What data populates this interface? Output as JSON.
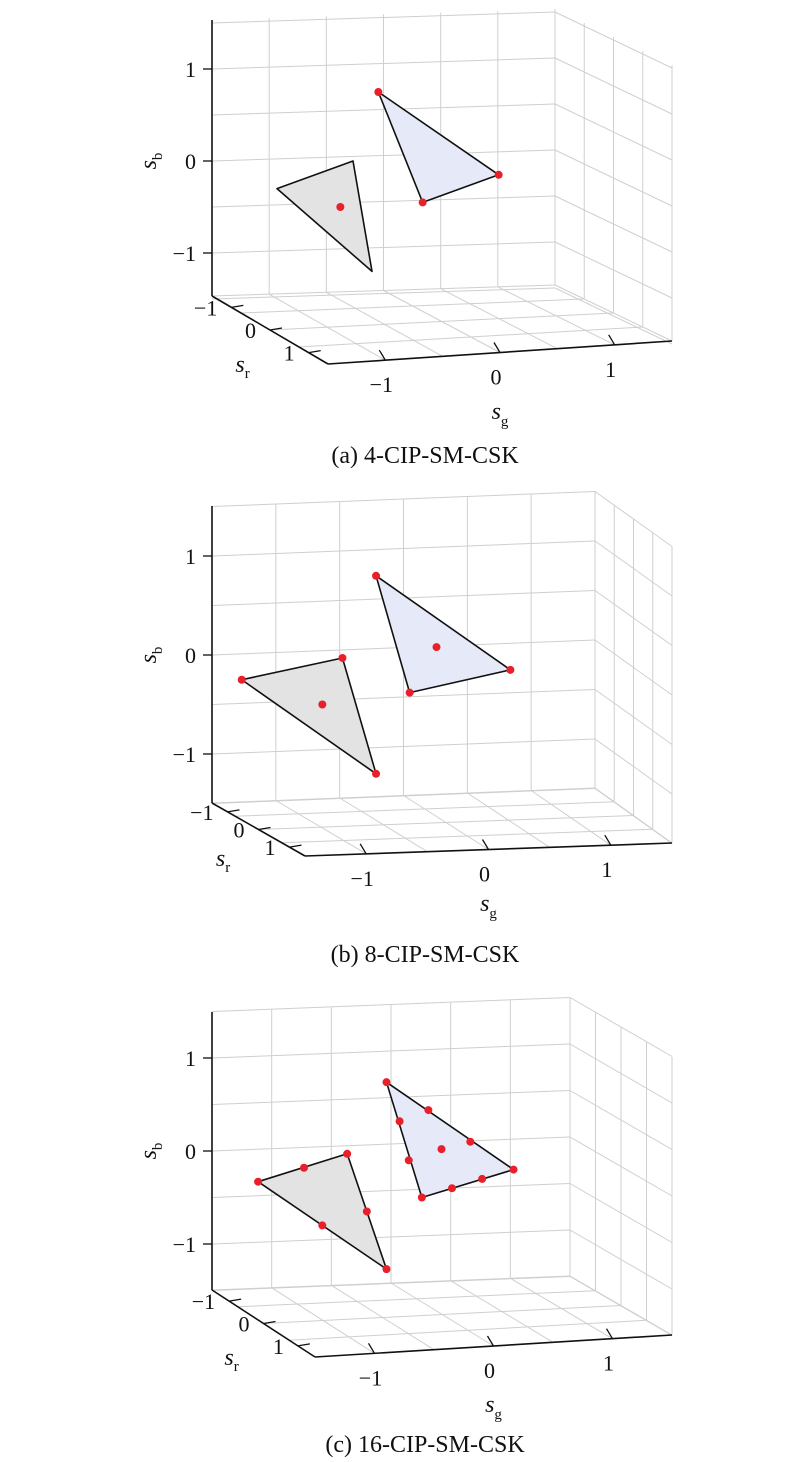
{
  "colors": {
    "triangle_left_fill": "#e3e3e3",
    "triangle_right_fill": "#e6e9f7",
    "point": "#e8202a",
    "grid": "#cfcfcf",
    "axis": "#111111"
  },
  "chart_data": [
    {
      "type": "scatter",
      "view": "3d",
      "caption": "(a) 4-CIP-SM-CSK",
      "axes": {
        "x": {
          "label": "s",
          "sub": "g",
          "ticks": [
            "−1",
            "0",
            "1"
          ],
          "range": [
            -1.5,
            1.5
          ]
        },
        "y": {
          "label": "s",
          "sub": "r",
          "ticks": [
            "−1",
            "0",
            "1"
          ],
          "range": [
            -1.5,
            1.5
          ]
        },
        "z": {
          "label": "s",
          "sub": "b",
          "ticks": [
            "−1",
            "0",
            "1"
          ],
          "range": [
            -1.5,
            1.5
          ]
        }
      },
      "grid": true,
      "triangles": [
        {
          "vertices": [
            [
              -1.35,
              -0.3
            ],
            [
              -0.75,
              0.0
            ],
            [
              -0.6,
              -1.2
            ]
          ]
        },
        {
          "vertices": [
            [
              -0.55,
              0.75
            ],
            [
              0.4,
              -0.15
            ],
            [
              -0.2,
              -0.45
            ]
          ]
        }
      ],
      "points": [
        [
          -0.55,
          0.75
        ],
        [
          0.4,
          -0.15
        ],
        [
          -0.2,
          -0.45
        ],
        [
          -0.85,
          -0.5
        ]
      ]
    },
    {
      "type": "scatter",
      "view": "3d",
      "caption": "(b) 8-CIP-SM-CSK",
      "axes": {
        "x": {
          "label": "s",
          "sub": "g",
          "ticks": [
            "−1",
            "0",
            "1"
          ],
          "range": [
            -1.5,
            1.5
          ]
        },
        "y": {
          "label": "s",
          "sub": "r",
          "ticks": [
            "−1",
            "0",
            "1"
          ],
          "range": [
            -1.5,
            1.5
          ]
        },
        "z": {
          "label": "s",
          "sub": "b",
          "ticks": [
            "−1",
            "0",
            "1"
          ],
          "range": [
            -1.5,
            1.5
          ]
        }
      },
      "grid": true,
      "triangles": [
        {
          "vertices": [
            [
              -1.45,
              -0.25
            ],
            [
              -0.7,
              -0.03
            ],
            [
              -0.45,
              -1.2
            ]
          ]
        },
        {
          "vertices": [
            [
              -0.45,
              0.8
            ],
            [
              0.55,
              -0.15
            ],
            [
              -0.2,
              -0.38
            ]
          ]
        }
      ],
      "points": [
        [
          -1.45,
          -0.25
        ],
        [
          -0.7,
          -0.03
        ],
        [
          -0.45,
          -1.2
        ],
        [
          -0.85,
          -0.5
        ],
        [
          -0.45,
          0.8
        ],
        [
          0.55,
          -0.15
        ],
        [
          -0.2,
          -0.38
        ],
        [
          0.0,
          0.08
        ]
      ]
    },
    {
      "type": "scatter",
      "view": "3d",
      "caption": "(c) 16-CIP-SM-CSK",
      "axes": {
        "x": {
          "label": "s",
          "sub": "g",
          "ticks": [
            "−1",
            "0",
            "1"
          ],
          "range": [
            -1.5,
            1.5
          ]
        },
        "y": {
          "label": "s",
          "sub": "r",
          "ticks": [
            "−1",
            "0",
            "1"
          ],
          "range": [
            -1.5,
            1.5
          ]
        },
        "z": {
          "label": "s",
          "sub": "b",
          "ticks": [
            "−1",
            "0",
            "1"
          ],
          "range": [
            -1.5,
            1.5
          ]
        }
      },
      "grid": true,
      "triangles": [
        {
          "vertices": [
            [
              -1.4,
              -0.33
            ],
            [
              -0.72,
              -0.03
            ],
            [
              -0.42,
              -1.27
            ]
          ]
        },
        {
          "vertices": [
            [
              -0.42,
              0.74
            ],
            [
              0.55,
              -0.2
            ],
            [
              -0.15,
              -0.5
            ]
          ]
        }
      ],
      "points": [
        [
          -1.4,
          -0.33
        ],
        [
          -1.05,
          -0.18
        ],
        [
          -0.72,
          -0.03
        ],
        [
          -0.57,
          -0.65
        ],
        [
          -0.42,
          -1.27
        ],
        [
          -0.91,
          -0.8
        ],
        [
          -0.42,
          0.74
        ],
        [
          -0.1,
          0.44
        ],
        [
          0.22,
          0.1
        ],
        [
          0.55,
          -0.2
        ],
        [
          0.31,
          -0.3
        ],
        [
          0.08,
          -0.4
        ],
        [
          -0.15,
          -0.5
        ],
        [
          -0.25,
          -0.1
        ],
        [
          -0.32,
          0.32
        ],
        [
          0.0,
          0.02
        ]
      ]
    }
  ]
}
